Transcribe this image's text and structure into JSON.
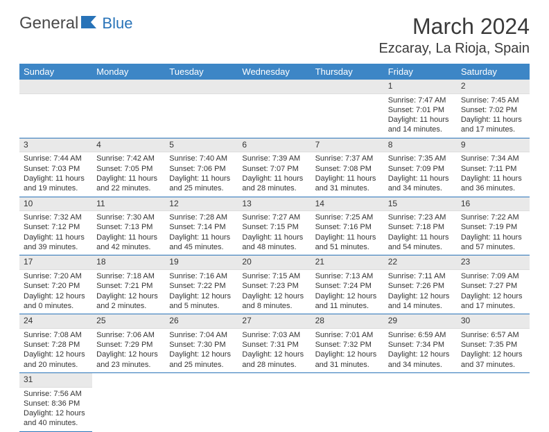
{
  "logo": {
    "text1": "General",
    "text2": "Blue"
  },
  "title": "March 2024",
  "location": "Ezcaray, La Rioja, Spain",
  "weekdays": [
    "Sunday",
    "Monday",
    "Tuesday",
    "Wednesday",
    "Thursday",
    "Friday",
    "Saturday"
  ],
  "colors": {
    "header_bg": "#3d86c6",
    "header_text": "#ffffff",
    "cell_border": "#2873b8",
    "daynum_bg": "#e9e9e9",
    "logo_gray": "#4a4a4a",
    "logo_blue": "#2873b8"
  },
  "weeks": [
    [
      null,
      null,
      null,
      null,
      null,
      {
        "n": "1",
        "sr": "Sunrise: 7:47 AM",
        "ss": "Sunset: 7:01 PM",
        "dl1": "Daylight: 11 hours",
        "dl2": "and 14 minutes."
      },
      {
        "n": "2",
        "sr": "Sunrise: 7:45 AM",
        "ss": "Sunset: 7:02 PM",
        "dl1": "Daylight: 11 hours",
        "dl2": "and 17 minutes."
      }
    ],
    [
      {
        "n": "3",
        "sr": "Sunrise: 7:44 AM",
        "ss": "Sunset: 7:03 PM",
        "dl1": "Daylight: 11 hours",
        "dl2": "and 19 minutes."
      },
      {
        "n": "4",
        "sr": "Sunrise: 7:42 AM",
        "ss": "Sunset: 7:05 PM",
        "dl1": "Daylight: 11 hours",
        "dl2": "and 22 minutes."
      },
      {
        "n": "5",
        "sr": "Sunrise: 7:40 AM",
        "ss": "Sunset: 7:06 PM",
        "dl1": "Daylight: 11 hours",
        "dl2": "and 25 minutes."
      },
      {
        "n": "6",
        "sr": "Sunrise: 7:39 AM",
        "ss": "Sunset: 7:07 PM",
        "dl1": "Daylight: 11 hours",
        "dl2": "and 28 minutes."
      },
      {
        "n": "7",
        "sr": "Sunrise: 7:37 AM",
        "ss": "Sunset: 7:08 PM",
        "dl1": "Daylight: 11 hours",
        "dl2": "and 31 minutes."
      },
      {
        "n": "8",
        "sr": "Sunrise: 7:35 AM",
        "ss": "Sunset: 7:09 PM",
        "dl1": "Daylight: 11 hours",
        "dl2": "and 34 minutes."
      },
      {
        "n": "9",
        "sr": "Sunrise: 7:34 AM",
        "ss": "Sunset: 7:11 PM",
        "dl1": "Daylight: 11 hours",
        "dl2": "and 36 minutes."
      }
    ],
    [
      {
        "n": "10",
        "sr": "Sunrise: 7:32 AM",
        "ss": "Sunset: 7:12 PM",
        "dl1": "Daylight: 11 hours",
        "dl2": "and 39 minutes."
      },
      {
        "n": "11",
        "sr": "Sunrise: 7:30 AM",
        "ss": "Sunset: 7:13 PM",
        "dl1": "Daylight: 11 hours",
        "dl2": "and 42 minutes."
      },
      {
        "n": "12",
        "sr": "Sunrise: 7:28 AM",
        "ss": "Sunset: 7:14 PM",
        "dl1": "Daylight: 11 hours",
        "dl2": "and 45 minutes."
      },
      {
        "n": "13",
        "sr": "Sunrise: 7:27 AM",
        "ss": "Sunset: 7:15 PM",
        "dl1": "Daylight: 11 hours",
        "dl2": "and 48 minutes."
      },
      {
        "n": "14",
        "sr": "Sunrise: 7:25 AM",
        "ss": "Sunset: 7:16 PM",
        "dl1": "Daylight: 11 hours",
        "dl2": "and 51 minutes."
      },
      {
        "n": "15",
        "sr": "Sunrise: 7:23 AM",
        "ss": "Sunset: 7:18 PM",
        "dl1": "Daylight: 11 hours",
        "dl2": "and 54 minutes."
      },
      {
        "n": "16",
        "sr": "Sunrise: 7:22 AM",
        "ss": "Sunset: 7:19 PM",
        "dl1": "Daylight: 11 hours",
        "dl2": "and 57 minutes."
      }
    ],
    [
      {
        "n": "17",
        "sr": "Sunrise: 7:20 AM",
        "ss": "Sunset: 7:20 PM",
        "dl1": "Daylight: 12 hours",
        "dl2": "and 0 minutes."
      },
      {
        "n": "18",
        "sr": "Sunrise: 7:18 AM",
        "ss": "Sunset: 7:21 PM",
        "dl1": "Daylight: 12 hours",
        "dl2": "and 2 minutes."
      },
      {
        "n": "19",
        "sr": "Sunrise: 7:16 AM",
        "ss": "Sunset: 7:22 PM",
        "dl1": "Daylight: 12 hours",
        "dl2": "and 5 minutes."
      },
      {
        "n": "20",
        "sr": "Sunrise: 7:15 AM",
        "ss": "Sunset: 7:23 PM",
        "dl1": "Daylight: 12 hours",
        "dl2": "and 8 minutes."
      },
      {
        "n": "21",
        "sr": "Sunrise: 7:13 AM",
        "ss": "Sunset: 7:24 PM",
        "dl1": "Daylight: 12 hours",
        "dl2": "and 11 minutes."
      },
      {
        "n": "22",
        "sr": "Sunrise: 7:11 AM",
        "ss": "Sunset: 7:26 PM",
        "dl1": "Daylight: 12 hours",
        "dl2": "and 14 minutes."
      },
      {
        "n": "23",
        "sr": "Sunrise: 7:09 AM",
        "ss": "Sunset: 7:27 PM",
        "dl1": "Daylight: 12 hours",
        "dl2": "and 17 minutes."
      }
    ],
    [
      {
        "n": "24",
        "sr": "Sunrise: 7:08 AM",
        "ss": "Sunset: 7:28 PM",
        "dl1": "Daylight: 12 hours",
        "dl2": "and 20 minutes."
      },
      {
        "n": "25",
        "sr": "Sunrise: 7:06 AM",
        "ss": "Sunset: 7:29 PM",
        "dl1": "Daylight: 12 hours",
        "dl2": "and 23 minutes."
      },
      {
        "n": "26",
        "sr": "Sunrise: 7:04 AM",
        "ss": "Sunset: 7:30 PM",
        "dl1": "Daylight: 12 hours",
        "dl2": "and 25 minutes."
      },
      {
        "n": "27",
        "sr": "Sunrise: 7:03 AM",
        "ss": "Sunset: 7:31 PM",
        "dl1": "Daylight: 12 hours",
        "dl2": "and 28 minutes."
      },
      {
        "n": "28",
        "sr": "Sunrise: 7:01 AM",
        "ss": "Sunset: 7:32 PM",
        "dl1": "Daylight: 12 hours",
        "dl2": "and 31 minutes."
      },
      {
        "n": "29",
        "sr": "Sunrise: 6:59 AM",
        "ss": "Sunset: 7:34 PM",
        "dl1": "Daylight: 12 hours",
        "dl2": "and 34 minutes."
      },
      {
        "n": "30",
        "sr": "Sunrise: 6:57 AM",
        "ss": "Sunset: 7:35 PM",
        "dl1": "Daylight: 12 hours",
        "dl2": "and 37 minutes."
      }
    ],
    [
      {
        "n": "31",
        "sr": "Sunrise: 7:56 AM",
        "ss": "Sunset: 8:36 PM",
        "dl1": "Daylight: 12 hours",
        "dl2": "and 40 minutes."
      },
      null,
      null,
      null,
      null,
      null,
      null
    ]
  ]
}
